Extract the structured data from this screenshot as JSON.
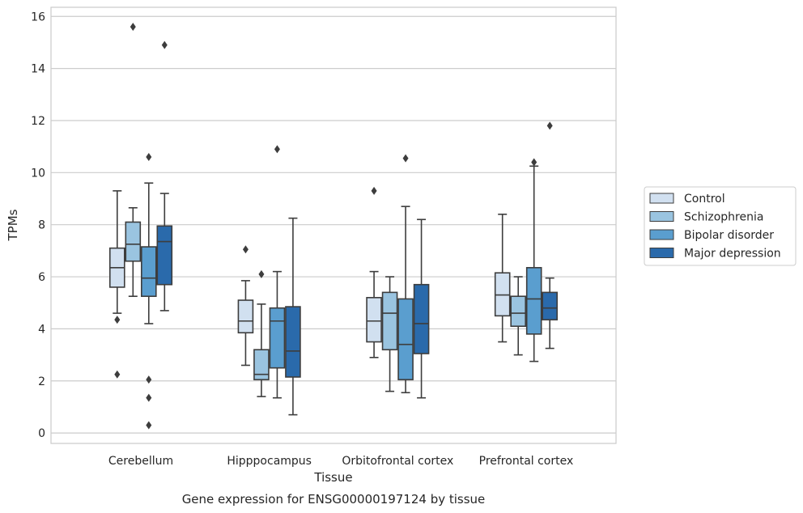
{
  "chart_data": {
    "type": "box",
    "xlabel": "Tissue",
    "ylabel": "TPMs",
    "caption": "Gene expression for ENSG00000197124 by tissue",
    "ylim": [
      -0.4,
      16.35
    ],
    "yticks": [
      0,
      2,
      4,
      6,
      8,
      10,
      12,
      14,
      16
    ],
    "grid": true,
    "legend_position": "right",
    "categories": [
      "Cerebellum",
      "Hipppocampus",
      "Orbitofrontal cortex",
      "Prefrontal cortex"
    ],
    "series": [
      {
        "name": "Control",
        "color": "#d1e0f0",
        "boxes": [
          {
            "whisker_low": 4.6,
            "q1": 5.6,
            "median": 6.35,
            "q3": 7.1,
            "whisker_high": 9.3,
            "outliers": [
              4.35,
              2.25
            ]
          },
          {
            "whisker_low": 2.6,
            "q1": 3.85,
            "median": 4.3,
            "q3": 5.1,
            "whisker_high": 5.85,
            "outliers": [
              7.05
            ]
          },
          {
            "whisker_low": 2.9,
            "q1": 3.5,
            "median": 4.3,
            "q3": 5.2,
            "whisker_high": 6.2,
            "outliers": [
              9.3
            ]
          },
          {
            "whisker_low": 3.5,
            "q1": 4.5,
            "median": 5.3,
            "q3": 6.15,
            "whisker_high": 8.4,
            "outliers": []
          }
        ]
      },
      {
        "name": "Schizophrenia",
        "color": "#9ac4e0",
        "boxes": [
          {
            "whisker_low": 5.25,
            "q1": 6.6,
            "median": 7.25,
            "q3": 8.1,
            "whisker_high": 8.65,
            "outliers": [
              15.6
            ]
          },
          {
            "whisker_low": 1.4,
            "q1": 2.05,
            "median": 2.25,
            "q3": 3.2,
            "whisker_high": 4.95,
            "outliers": [
              6.1
            ]
          },
          {
            "whisker_low": 1.6,
            "q1": 3.2,
            "median": 4.6,
            "q3": 5.4,
            "whisker_high": 6.0,
            "outliers": []
          },
          {
            "whisker_low": 3.0,
            "q1": 4.1,
            "median": 4.6,
            "q3": 5.25,
            "whisker_high": 6.0,
            "outliers": []
          }
        ]
      },
      {
        "name": "Bipolar disorder",
        "color": "#5a9ecf",
        "boxes": [
          {
            "whisker_low": 4.2,
            "q1": 5.25,
            "median": 5.95,
            "q3": 7.15,
            "whisker_high": 9.6,
            "outliers": [
              10.6,
              2.05,
              1.35,
              0.3
            ]
          },
          {
            "whisker_low": 1.35,
            "q1": 2.5,
            "median": 4.3,
            "q3": 4.8,
            "whisker_high": 6.2,
            "outliers": [
              10.9
            ]
          },
          {
            "whisker_low": 1.55,
            "q1": 2.05,
            "median": 3.4,
            "q3": 5.15,
            "whisker_high": 8.7,
            "outliers": [
              10.55
            ]
          },
          {
            "whisker_low": 2.75,
            "q1": 3.8,
            "median": 5.15,
            "q3": 6.35,
            "whisker_high": 10.25,
            "outliers": [
              10.4
            ]
          }
        ]
      },
      {
        "name": "Major depression",
        "color": "#2a6aab",
        "boxes": [
          {
            "whisker_low": 4.7,
            "q1": 5.7,
            "median": 7.35,
            "q3": 7.95,
            "whisker_high": 9.2,
            "outliers": [
              14.9
            ]
          },
          {
            "whisker_low": 0.7,
            "q1": 2.15,
            "median": 3.15,
            "q3": 4.85,
            "whisker_high": 8.25,
            "outliers": []
          },
          {
            "whisker_low": 1.35,
            "q1": 3.05,
            "median": 4.2,
            "q3": 5.7,
            "whisker_high": 8.2,
            "outliers": []
          },
          {
            "whisker_low": 3.25,
            "q1": 4.35,
            "median": 4.8,
            "q3": 5.4,
            "whisker_high": 5.95,
            "outliers": [
              11.8
            ]
          }
        ]
      }
    ]
  }
}
